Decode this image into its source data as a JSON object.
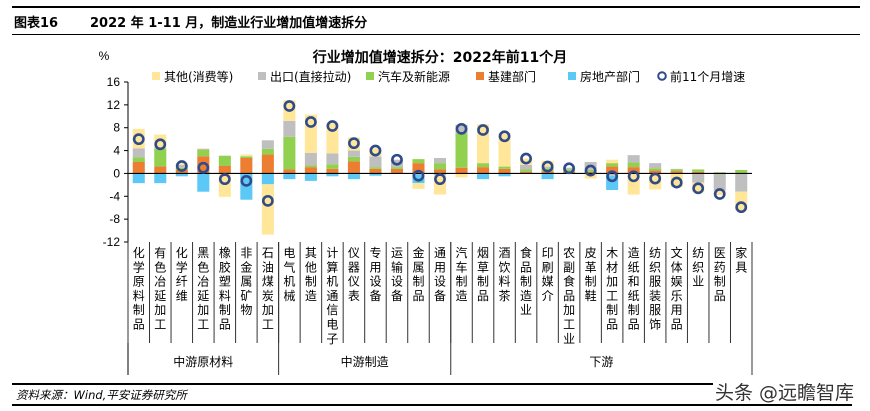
{
  "header": {
    "figure_no": "图表16",
    "title": "2022 年 1-11 月，制造业行业增加值增速拆分"
  },
  "footer": {
    "source": "资料来源：Wind,平安证券研究所",
    "watermark": "头条 @远瞻智库"
  },
  "chart_data": {
    "type": "bar",
    "stacked": true,
    "title": "行业增加值增速拆分：2022年前11个月",
    "ylabel": "%",
    "ylim": [
      -12,
      16
    ],
    "yticks": [
      -12,
      -8,
      -4,
      0,
      4,
      8,
      12,
      16
    ],
    "grid": false,
    "legend": "top",
    "categories": [
      "化学原料制品",
      "有色冶延加工",
      "化学纤维",
      "黑色冶延加工",
      "橡胶塑料制品",
      "非金属矿物",
      "石油煤炭加工",
      "电气机械",
      "其他制造",
      "计算机通信电子",
      "仪器仪表",
      "专用设备",
      "运输设备",
      "金属制品",
      "通用设备",
      "汽车制造",
      "烟草制品",
      "酒饮料茶",
      "食品制造业",
      "印刷媒介",
      "农副食品加工业",
      "皮革制鞋",
      "木材加工制品",
      "造纸和纸制品",
      "纺织服装服饰",
      "文体娱乐用品",
      "纺织业",
      "医药制品",
      "家具"
    ],
    "groups": [
      {
        "label": "中游原材料",
        "count": 7
      },
      {
        "label": "中游制造",
        "count": 8
      },
      {
        "label": "下游",
        "count": 14
      }
    ],
    "series": [
      {
        "name": "基建部门",
        "color": "#ED7D31",
        "values": [
          2.0,
          1.2,
          0.6,
          3.0,
          1.3,
          2.7,
          3.3,
          0.7,
          1.1,
          0.8,
          2.1,
          0.8,
          0.8,
          1.8,
          0.7,
          1.0,
          1.1,
          0.8,
          0.3,
          0.4,
          0.3,
          0.3,
          1.2,
          1.1,
          0.5,
          0.4,
          0.3,
          0,
          0
        ]
      },
      {
        "name": "汽车及新能源",
        "color": "#92D050",
        "values": [
          0.8,
          3.1,
          0.4,
          1.1,
          1.8,
          0.3,
          1.0,
          5.7,
          0.3,
          0.8,
          0.8,
          0.3,
          0.3,
          0.7,
          1.1,
          6.0,
          0.7,
          0.4,
          0.4,
          0.5,
          0.4,
          0.3,
          0.6,
          0.8,
          0.4,
          0.3,
          0.4,
          0.2,
          0.6
        ]
      },
      {
        "name": "出口(直接拉动)",
        "color": "#BFBFBF",
        "values": [
          1.6,
          0.3,
          0.5,
          0.2,
          0,
          0,
          1.5,
          2.8,
          2.2,
          1.9,
          1.1,
          1.9,
          1.3,
          -0.2,
          0.9,
          1.5,
          0,
          0,
          0.8,
          0.3,
          0.3,
          1.4,
          -0.4,
          1.3,
          0.9,
          0.1,
          -1.6,
          -3.0,
          -3.2
        ]
      },
      {
        "name": "房地产部门",
        "color": "#5BC8F5",
        "values": [
          -1.7,
          -1.7,
          -0.5,
          -3.2,
          0,
          -4.6,
          -1.9,
          -1.0,
          -1.3,
          -0.5,
          -1.0,
          -0.4,
          0,
          -1.5,
          -0.3,
          0,
          -1.0,
          -0.5,
          0,
          -1.0,
          0,
          0,
          -2.5,
          0,
          0,
          0,
          0,
          0,
          0
        ]
      },
      {
        "name": "其他(消费等)",
        "color": "#FFE699",
        "values": [
          3.4,
          2.2,
          0.3,
          0.1,
          -4.1,
          0.3,
          -8.8,
          3.6,
          6.7,
          5.3,
          2.3,
          1.4,
          0,
          -1.0,
          -3.4,
          -0.7,
          6.8,
          5.8,
          1.1,
          1.0,
          0,
          -0.9,
          0.6,
          -3.7,
          -2.8,
          -2.4,
          -1.7,
          -0.8,
          -3.3
        ]
      }
    ],
    "line_series": {
      "name": "前11个月增速",
      "marker": "circle",
      "color": "#2F4B8A",
      "values": [
        6.0,
        5.1,
        1.3,
        1.0,
        -1.0,
        -1.3,
        -4.8,
        11.8,
        9.0,
        8.3,
        5.3,
        4.0,
        2.4,
        -0.4,
        -1.0,
        7.8,
        7.6,
        6.5,
        2.6,
        1.2,
        0.9,
        0.5,
        -0.5,
        -0.5,
        -0.9,
        -1.6,
        -2.6,
        -3.6,
        -5.9
      ]
    }
  }
}
